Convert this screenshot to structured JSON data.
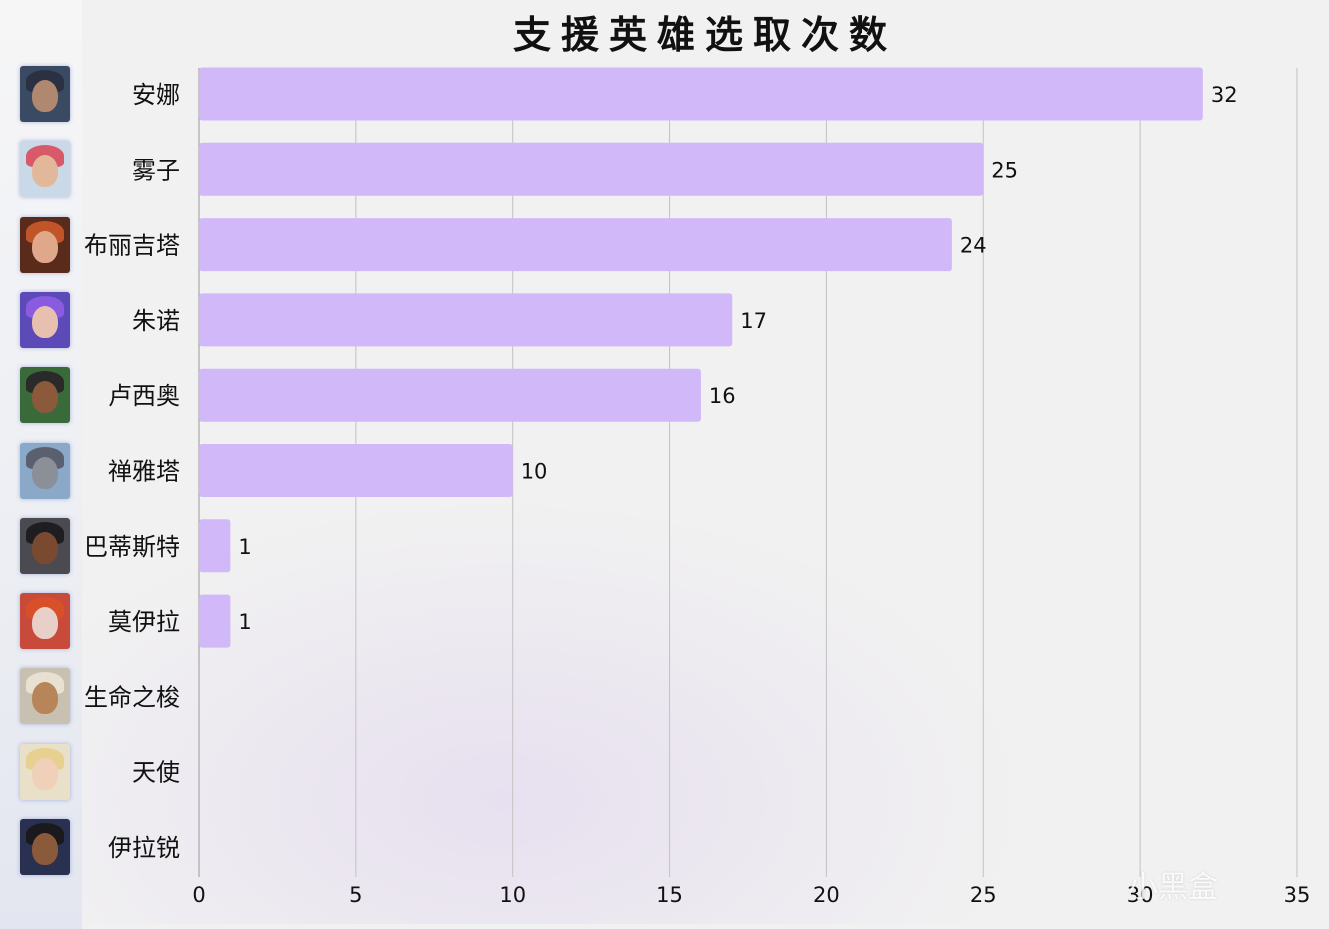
{
  "chart_data": {
    "type": "bar",
    "orientation": "horizontal",
    "title": "支援英雄选取次数",
    "categories": [
      "安娜",
      "雾子",
      "布丽吉塔",
      "朱诺",
      "卢西奥",
      "禅雅塔",
      "巴蒂斯特",
      "莫伊拉",
      "生命之梭",
      "天使",
      "伊拉锐"
    ],
    "values": [
      32,
      25,
      24,
      17,
      16,
      10,
      1,
      1,
      0,
      0,
      0
    ],
    "xlim": [
      0,
      35
    ],
    "xticks": [
      0,
      5,
      10,
      15,
      20,
      25,
      30,
      35
    ],
    "grid": true,
    "bar_color": "#d1b8f8"
  },
  "avatars": [
    {
      "hero": "安娜",
      "icon": "ana-portrait-icon",
      "bg": "#3b4a63",
      "hair": "#2a3142",
      "skin": "#b08870"
    },
    {
      "hero": "雾子",
      "icon": "kiriko-portrait-icon",
      "bg": "#c9d9e8",
      "hair": "#d85a6a",
      "skin": "#e2b89a"
    },
    {
      "hero": "布丽吉塔",
      "icon": "brigitte-portrait-icon",
      "bg": "#5a2a1a",
      "hair": "#c2542a",
      "skin": "#e0a88a"
    },
    {
      "hero": "朱诺",
      "icon": "juno-portrait-icon",
      "bg": "#5b4ab8",
      "hair": "#8a5ae0",
      "skin": "#e8c0b0"
    },
    {
      "hero": "卢西奥",
      "icon": "lucio-portrait-icon",
      "bg": "#3a6a3a",
      "hair": "#2a2a2a",
      "skin": "#8a5a3a"
    },
    {
      "hero": "禅雅塔",
      "icon": "zenyatta-portrait-icon",
      "bg": "#8aa8c8",
      "hair": "#5a6070",
      "skin": "#8a8f98"
    },
    {
      "hero": "巴蒂斯特",
      "icon": "baptiste-portrait-icon",
      "bg": "#4a4a50",
      "hair": "#1e1e22",
      "skin": "#7a4a30"
    },
    {
      "hero": "莫伊拉",
      "icon": "moira-portrait-icon",
      "bg": "#c84a3a",
      "hair": "#d8502a",
      "skin": "#e8d0c8"
    },
    {
      "hero": "生命之梭",
      "icon": "lifeweaver-portrait-icon",
      "bg": "#c8c0b0",
      "hair": "#e8e0d0",
      "skin": "#b8845a"
    },
    {
      "hero": "天使",
      "icon": "mercy-portrait-icon",
      "bg": "#e8e0c8",
      "hair": "#e8d090",
      "skin": "#f0d0b8"
    },
    {
      "hero": "伊拉锐",
      "icon": "illari-portrait-icon",
      "bg": "#2a3050",
      "hair": "#1a1a1e",
      "skin": "#8a5a3a"
    }
  ],
  "watermark": "小黑盒"
}
